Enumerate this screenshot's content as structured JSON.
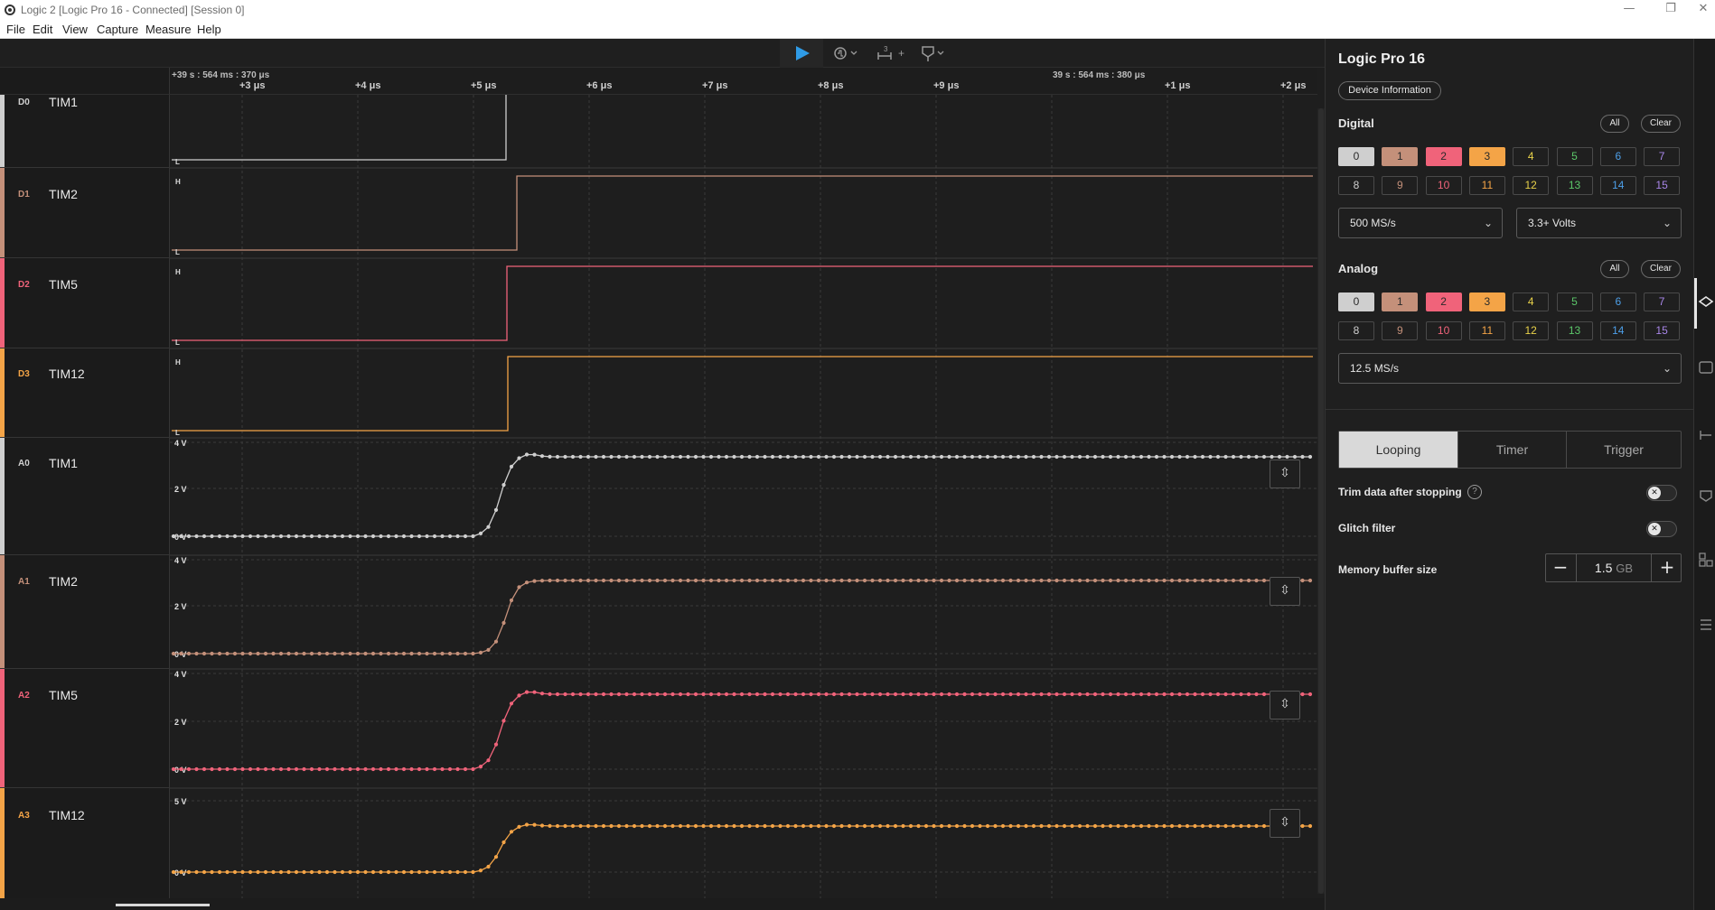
{
  "window": {
    "title": "Logic 2 [Logic Pro 16 - Connected] [Session 0]",
    "minimize": "—",
    "restore": "❐",
    "close": "✕"
  },
  "menu": [
    "File",
    "Edit",
    "View",
    "Capture",
    "Measure",
    "Help"
  ],
  "toolbar": {
    "play_icon": "play-icon",
    "trigger_icon": "trigger-icon",
    "marker_label": "3",
    "marker_plus": "+",
    "flag_icon": "flag-icon"
  },
  "ruler": {
    "left_timestamp": "+39 s : 564 ms : 370 μs",
    "right_timestamp": "39 s : 564 ms : 380 μs",
    "ticks": [
      "+3 μs",
      "+4 μs",
      "+5 μs",
      "+6 μs",
      "+7 μs",
      "+8 μs",
      "+9 μs",
      "+1 μs",
      "+2 μs"
    ]
  },
  "channels": [
    {
      "id": "D0",
      "name": "TIM1",
      "color": "#cfcfcf",
      "type": "digital"
    },
    {
      "id": "D1",
      "name": "TIM2",
      "color": "#c4907a",
      "type": "digital"
    },
    {
      "id": "D2",
      "name": "TIM5",
      "color": "#f0637a",
      "type": "digital"
    },
    {
      "id": "D3",
      "name": "TIM12",
      "color": "#f4a447",
      "type": "digital"
    },
    {
      "id": "A0",
      "name": "TIM1",
      "color": "#cfcfcf",
      "type": "analog"
    },
    {
      "id": "A1",
      "name": "TIM2",
      "color": "#c4907a",
      "type": "analog"
    },
    {
      "id": "A2",
      "name": "TIM5",
      "color": "#f0637a",
      "type": "analog"
    },
    {
      "id": "A3",
      "name": "TIM12",
      "color": "#f4a447",
      "type": "analog"
    }
  ],
  "digital_labels": {
    "high": "H",
    "low": "L"
  },
  "analog_scales": [
    {
      "top": "4 V",
      "mid": "2 V",
      "zero": "0 V"
    },
    {
      "top": "4 V",
      "mid": "2 V",
      "zero": "0 V"
    },
    {
      "top": "4 V",
      "mid": "2 V",
      "zero": "0 V"
    },
    {
      "top": "5 V",
      "mid": "",
      "zero": "0 V"
    }
  ],
  "fit_icon": "fit-vertical-icon",
  "panel": {
    "title": "Logic Pro 16",
    "device_info": "Device Information",
    "digital_label": "Digital",
    "analog_label": "Analog",
    "all_label": "All",
    "clear_label": "Clear",
    "channel_numbers": [
      "0",
      "1",
      "2",
      "3",
      "4",
      "5",
      "6",
      "7",
      "8",
      "9",
      "10",
      "11",
      "12",
      "13",
      "14",
      "15"
    ],
    "channel_colors": [
      "#cfcfcf",
      "#c4907a",
      "#f0637a",
      "#f4a447",
      "#e9d24a",
      "#5cc76a",
      "#4d9fe8",
      "#a886e8",
      "#cfcfcf",
      "#c4907a",
      "#f0637a",
      "#f4a447",
      "#e9d24a",
      "#5cc76a",
      "#4d9fe8",
      "#a886e8"
    ],
    "digital_enabled": [
      true,
      true,
      true,
      true
    ],
    "analog_enabled": [
      true,
      true,
      true,
      true
    ],
    "digital_rate": "500 MS/s",
    "voltage": "3.3+ Volts",
    "analog_rate": "12.5 MS/s",
    "tabs": [
      "Looping",
      "Timer",
      "Trigger"
    ],
    "active_tab": "Looping",
    "trim_label": "Trim data after stopping",
    "help_glyph": "?",
    "glitch_label": "Glitch filter",
    "memory_label": "Memory buffer size",
    "memory_value": "1.5",
    "memory_unit": "GB",
    "minus": "−",
    "plus": "+"
  },
  "strip_icons": [
    "device-settings-icon",
    "analyzers-icon",
    "measurements-icon",
    "annotations-icon",
    "extensions-icon",
    "data-table-icon"
  ]
}
